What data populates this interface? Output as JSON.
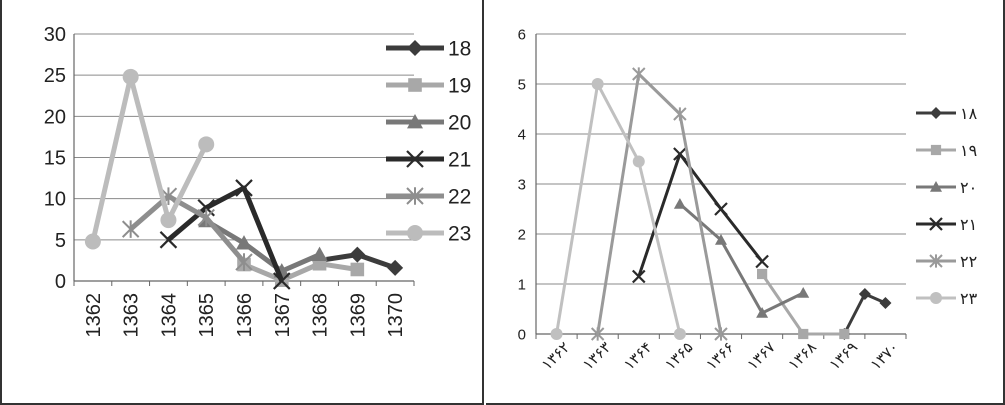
{
  "chart_data": [
    {
      "type": "line",
      "categories": [
        "1362",
        "1363",
        "1364",
        "1365",
        "1366",
        "1367",
        "1368",
        "1369",
        "1370"
      ],
      "ylim": [
        0,
        30
      ],
      "yticks": [
        "0",
        "5",
        "10",
        "15",
        "20",
        "25",
        "30"
      ],
      "grid": true,
      "legend_position": "right",
      "series": [
        {
          "name": "18",
          "color": "#3c3c3c",
          "marker": "diamond",
          "values": [
            null,
            null,
            null,
            null,
            null,
            null,
            2.5,
            3.2,
            1.6
          ]
        },
        {
          "name": "19",
          "color": "#a8a8a8",
          "marker": "square",
          "values": [
            null,
            null,
            null,
            null,
            2.0,
            0.1,
            2.1,
            1.4,
            null
          ]
        },
        {
          "name": "20",
          "color": "#787878",
          "marker": "triangle",
          "values": [
            null,
            null,
            null,
            7.3,
            4.6,
            1.2,
            3.2,
            null,
            null
          ]
        },
        {
          "name": "21",
          "color": "#2a2a2a",
          "marker": "x",
          "values": [
            null,
            null,
            5.0,
            8.9,
            11.3,
            0.0,
            null,
            null,
            null
          ]
        },
        {
          "name": "22",
          "color": "#8e8e8e",
          "marker": "asterisk",
          "values": [
            null,
            6.3,
            10.3,
            7.7,
            2.3,
            null,
            null,
            null,
            null
          ]
        },
        {
          "name": "23",
          "color": "#bcbcbc",
          "marker": "circle",
          "values": [
            4.8,
            24.8,
            7.4,
            16.6,
            null,
            null,
            null,
            null,
            null
          ]
        }
      ]
    },
    {
      "type": "line",
      "categories": [
        "۱۳۶۲",
        "۱۳۶۳",
        "۱۳۶۴",
        "۱۳۶۵",
        "۱۳۶۶",
        "۱۳۶۷",
        "۱۳۶۸",
        "۱۳۶۹",
        "۱۳۷۰"
      ],
      "ylim": [
        0,
        6
      ],
      "yticks": [
        "0",
        "1",
        "2",
        "3",
        "4",
        "5",
        "6"
      ],
      "grid": true,
      "legend_position": "right",
      "series": [
        {
          "name": "۱۸",
          "color": "#3c3c3c",
          "marker": "diamond",
          "x": [
            7.0,
            7.5,
            8.0
          ],
          "values": [
            0.0,
            0.8,
            0.62
          ]
        },
        {
          "name": "۱۹",
          "color": "#a8a8a8",
          "marker": "square",
          "x": [
            5.0,
            6.0,
            7.0
          ],
          "values": [
            1.2,
            0.0,
            0.0
          ]
        },
        {
          "name": "۲۰",
          "color": "#787878",
          "marker": "triangle",
          "x": [
            3.0,
            4.0,
            5.0,
            6.0
          ],
          "values": [
            2.6,
            1.88,
            0.42,
            0.82
          ]
        },
        {
          "name": "۲۱",
          "color": "#2a2a2a",
          "marker": "x",
          "x": [
            2.0,
            3.0,
            4.0,
            5.0
          ],
          "values": [
            1.15,
            3.6,
            2.5,
            1.45
          ]
        },
        {
          "name": "۲۲",
          "color": "#9a9a9a",
          "marker": "asterisk",
          "x": [
            1.0,
            2.0,
            3.0,
            4.0
          ],
          "values": [
            0.0,
            5.2,
            4.4,
            0.0
          ]
        },
        {
          "name": "۲۳",
          "color": "#c0c0c0",
          "marker": "circle",
          "x": [
            0.0,
            1.0,
            2.0,
            3.0
          ],
          "values": [
            0.0,
            5.0,
            3.45,
            0.0
          ]
        }
      ]
    }
  ]
}
